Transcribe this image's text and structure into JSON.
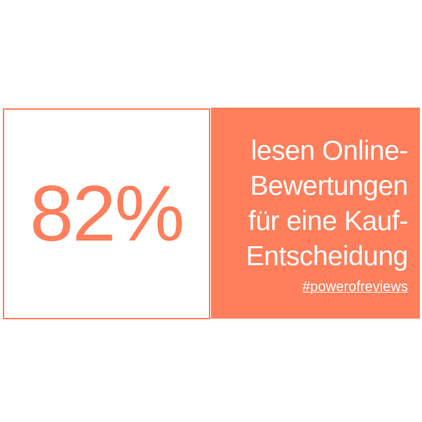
{
  "stat": {
    "value": "82%"
  },
  "text": {
    "lines": [
      "lesen Online-",
      "Bewertungen",
      "für eine Kauf-",
      "Entscheidung"
    ]
  },
  "hashtag": "#powerofreviews",
  "colors": {
    "accent": "#ff7f5c",
    "text_on_accent": "#ffffff"
  }
}
